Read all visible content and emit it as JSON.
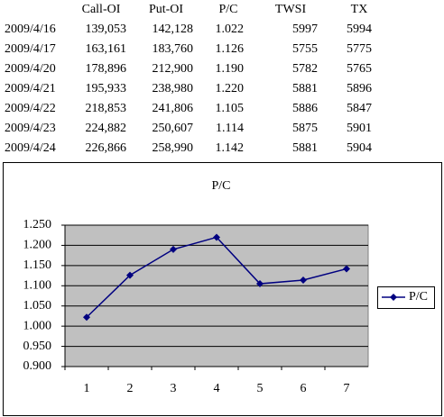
{
  "table": {
    "headers": [
      "Call-OI",
      "Put-OI",
      "P/C",
      "TWSI",
      "TX"
    ],
    "rows": [
      [
        "2009/4/16",
        "139,053",
        "142,128",
        "1.022",
        "5997",
        "5994"
      ],
      [
        "2009/4/17",
        "163,161",
        "183,760",
        "1.126",
        "5755",
        "5775"
      ],
      [
        "2009/4/20",
        "178,896",
        "212,900",
        "1.190",
        "5782",
        "5765"
      ],
      [
        "2009/4/21",
        "195,933",
        "238,980",
        "1.220",
        "5881",
        "5896"
      ],
      [
        "2009/4/22",
        "218,853",
        "241,806",
        "1.105",
        "5886",
        "5847"
      ],
      [
        "2009/4/23",
        "224,882",
        "250,607",
        "1.114",
        "5875",
        "5901"
      ],
      [
        "2009/4/24",
        "226,866",
        "258,990",
        "1.142",
        "5881",
        "5904"
      ]
    ]
  },
  "chart_data": {
    "type": "line",
    "title": "P/C",
    "categories": [
      "1",
      "2",
      "3",
      "4",
      "5",
      "6",
      "7"
    ],
    "series": [
      {
        "name": "P/C",
        "color": "#000080",
        "values": [
          1.022,
          1.126,
          1.19,
          1.22,
          1.105,
          1.114,
          1.142
        ]
      }
    ],
    "ylim": [
      0.9,
      1.25
    ],
    "yticks": [
      {
        "value": 0.9,
        "label": "0.900"
      },
      {
        "value": 0.95,
        "label": "0.950"
      },
      {
        "value": 1.0,
        "label": "1.000"
      },
      {
        "value": 1.05,
        "label": "1.050"
      },
      {
        "value": 1.1,
        "label": "1.100"
      },
      {
        "value": 1.15,
        "label": "1.150"
      },
      {
        "value": 1.2,
        "label": "1.200"
      },
      {
        "value": 1.25,
        "label": "1.250"
      }
    ],
    "grid": true,
    "plot_background": "#c0c0c0",
    "legend": "right"
  }
}
